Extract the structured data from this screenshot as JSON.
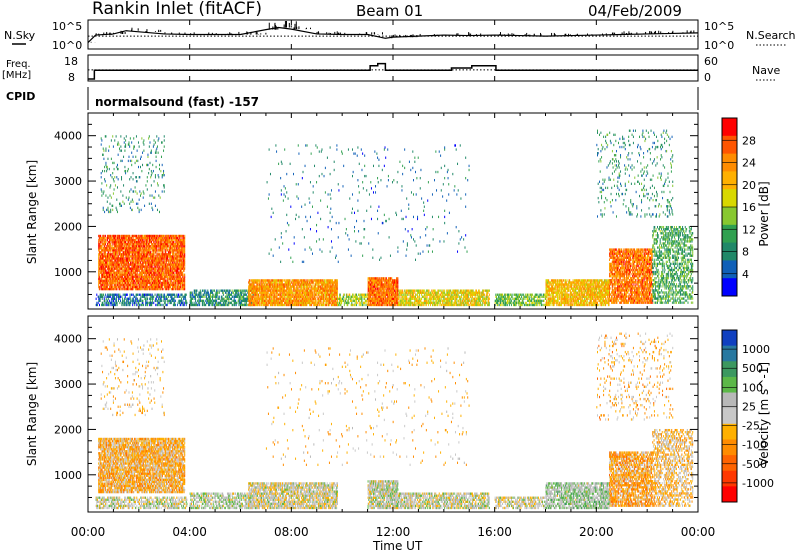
{
  "header": {
    "station": "Rankin Inlet (fitACF)",
    "beam": "Beam 01",
    "date": "04/Feb/2009"
  },
  "side_labels": {
    "nsky": "N.Sky",
    "nsearch": "N.Search",
    "freq": "Freq.",
    "freq_unit": "[MHz]",
    "nave": "Nave",
    "cpid": "CPID"
  },
  "cpid_text": "normalsound (fast) -157",
  "noise_axis": {
    "left_ticks": [
      "10^5",
      "10^0"
    ],
    "right_ticks": [
      "10^5",
      "10^0"
    ]
  },
  "freq_axis": {
    "left_ticks": [
      "18",
      "8"
    ],
    "right_ticks": [
      "60",
      "0"
    ]
  },
  "x_axis": {
    "label": "Time UT",
    "range_hours": [
      0,
      24
    ],
    "tick_hours": [
      0,
      4,
      8,
      12,
      16,
      20,
      24
    ],
    "tick_labels": [
      "00:00",
      "04:00",
      "08:00",
      "12:00",
      "16:00",
      "20:00",
      "00:00"
    ]
  },
  "y_axis": {
    "label": "Slant Range [km]",
    "range_km": [
      180,
      4500
    ],
    "tick_values": [
      1000,
      2000,
      3000,
      4000
    ],
    "tick_labels": [
      "1000",
      "2000",
      "3000",
      "4000"
    ]
  },
  "power_scale": {
    "title": "Power [dB]",
    "labels": [
      "28",
      "24",
      "20",
      "16",
      "12",
      "8",
      "4"
    ],
    "colors": [
      "#ff0000",
      "#ff5500",
      "#ff8c00",
      "#ffb000",
      "#d8d800",
      "#88c830",
      "#30a050",
      "#208868",
      "#1060b8",
      "#0000ff"
    ]
  },
  "velocity_scale": {
    "title": "Velocity [m s^-1]",
    "labels": [
      "1000",
      "500",
      "100",
      "25",
      "-25",
      "-100",
      "-500",
      "-1000"
    ],
    "colors": [
      "#1040c0",
      "#2878a0",
      "#3c9860",
      "#5cb848",
      "#b8b8b8",
      "#c8c8c8",
      "#ffb000",
      "#ff8c00",
      "#ff6400",
      "#ff3800",
      "#ff0000"
    ]
  },
  "chart_data": [
    {
      "type": "line",
      "title": "N.Sky / N.Search",
      "x_units": "hours UT",
      "description_y": "noise level (log scale, 10^0 to 10^5)",
      "series": [
        {
          "name": "N.Sky",
          "x": [
            0,
            0.3,
            1,
            1.5,
            2,
            3,
            4,
            6,
            7,
            7.5,
            8,
            9,
            10,
            11,
            11.7,
            12,
            13,
            14,
            15,
            16,
            17,
            18,
            19,
            20,
            21,
            22,
            23,
            24
          ],
          "values": [
            1,
            2.4,
            2.6,
            3.2,
            3.0,
            2.6,
            2.5,
            2.5,
            3.4,
            3.8,
            3.5,
            2.6,
            2.5,
            2.5,
            1.8,
            2.0,
            2.2,
            2.4,
            2.3,
            2.4,
            2.3,
            2.2,
            2.3,
            2.4,
            2.5,
            2.6,
            2.7,
            2.8
          ]
        },
        {
          "name": "N.Search",
          "x": [
            0,
            24
          ],
          "values": [
            2.2,
            2.2
          ]
        }
      ]
    },
    {
      "type": "line",
      "title": "Freq. / Nave",
      "x_units": "hours UT",
      "series": [
        {
          "name": "Freq. [MHz]",
          "x": [
            0,
            0.2,
            0.25,
            7.5,
            7.6,
            11,
            11.1,
            11.3,
            11.4,
            11.6,
            11.7,
            14.2,
            14.3,
            15,
            15.1,
            16,
            16.05,
            24
          ],
          "values": [
            8,
            8,
            12,
            12,
            12,
            12,
            14,
            14,
            15,
            15,
            12,
            12,
            13,
            13,
            14,
            14,
            12,
            12
          ]
        },
        {
          "name": "Nave",
          "x": [
            0,
            24
          ],
          "values": [
            25,
            25
          ]
        }
      ]
    },
    {
      "type": "heatmap",
      "title": "Power [dB]",
      "x_units": "hours UT",
      "y_units": "Slant Range [km]",
      "scale": [
        4,
        32
      ],
      "blobs": [
        {
          "t0": 0.4,
          "t1": 3.8,
          "r0": 600,
          "r1": 1800,
          "val": 27,
          "density": 0.85
        },
        {
          "t0": 0.3,
          "t1": 3.9,
          "r0": 250,
          "r1": 500,
          "val": 10,
          "density": 0.55
        },
        {
          "t0": 4.0,
          "t1": 6.5,
          "r0": 250,
          "r1": 600,
          "val": 12,
          "density": 0.6
        },
        {
          "t0": 6.3,
          "t1": 9.8,
          "r0": 250,
          "r1": 800,
          "val": 24,
          "density": 0.85
        },
        {
          "t0": 9.8,
          "t1": 11.0,
          "r0": 250,
          "r1": 500,
          "val": 18,
          "density": 0.55
        },
        {
          "t0": 11.0,
          "t1": 12.2,
          "r0": 250,
          "r1": 850,
          "val": 26,
          "density": 0.9
        },
        {
          "t0": 12.2,
          "t1": 15.8,
          "r0": 250,
          "r1": 600,
          "val": 20,
          "density": 0.75
        },
        {
          "t0": 16.0,
          "t1": 18.0,
          "r0": 250,
          "r1": 500,
          "val": 16,
          "density": 0.6
        },
        {
          "t0": 18.0,
          "t1": 20.5,
          "r0": 250,
          "r1": 800,
          "val": 22,
          "density": 0.8
        },
        {
          "t0": 20.5,
          "t1": 22.2,
          "r0": 300,
          "r1": 1500,
          "val": 26,
          "density": 0.75
        },
        {
          "t0": 22.2,
          "t1": 23.8,
          "r0": 300,
          "r1": 2000,
          "val": 14,
          "density": 0.45
        },
        {
          "t0": 0.5,
          "t1": 3.0,
          "r0": 2300,
          "r1": 4000,
          "val": 12,
          "density": 0.07
        },
        {
          "t0": 20.0,
          "t1": 23.0,
          "r0": 2200,
          "r1": 4100,
          "val": 12,
          "density": 0.08
        },
        {
          "t0": 7.0,
          "t1": 15.0,
          "r0": 1200,
          "r1": 3800,
          "val": 10,
          "density": 0.02
        }
      ]
    },
    {
      "type": "heatmap",
      "title": "Velocity [m s^-1]",
      "x_units": "hours UT",
      "y_units": "Slant Range [km]",
      "scale": [
        -1000,
        1000
      ],
      "blobs": [
        {
          "t0": 0.4,
          "t1": 3.8,
          "r0": 600,
          "r1": 1800,
          "val": -200,
          "density": 0.8
        },
        {
          "t0": 0.3,
          "t1": 3.9,
          "r0": 250,
          "r1": 500,
          "val": 100,
          "density": 0.55
        },
        {
          "t0": 4.0,
          "t1": 6.5,
          "r0": 250,
          "r1": 600,
          "val": 150,
          "density": 0.55
        },
        {
          "t0": 6.3,
          "t1": 9.8,
          "r0": 250,
          "r1": 800,
          "val": 50,
          "density": 0.7
        },
        {
          "t0": 11.0,
          "t1": 12.2,
          "r0": 250,
          "r1": 850,
          "val": 100,
          "density": 0.8
        },
        {
          "t0": 12.2,
          "t1": 15.8,
          "r0": 250,
          "r1": 600,
          "val": 80,
          "density": 0.65
        },
        {
          "t0": 16.0,
          "t1": 18.0,
          "r0": 250,
          "r1": 500,
          "val": 60,
          "density": 0.55
        },
        {
          "t0": 18.0,
          "t1": 20.5,
          "r0": 250,
          "r1": 800,
          "val": 200,
          "density": 0.7
        },
        {
          "t0": 20.5,
          "t1": 22.2,
          "r0": 300,
          "r1": 1500,
          "val": -250,
          "density": 0.7
        },
        {
          "t0": 22.2,
          "t1": 23.8,
          "r0": 300,
          "r1": 2000,
          "val": -150,
          "density": 0.45
        },
        {
          "t0": 0.5,
          "t1": 3.0,
          "r0": 2300,
          "r1": 4000,
          "val": -150,
          "density": 0.07
        },
        {
          "t0": 20.0,
          "t1": 23.0,
          "r0": 2200,
          "r1": 4100,
          "val": -200,
          "density": 0.08
        },
        {
          "t0": 7.0,
          "t1": 15.0,
          "r0": 1200,
          "r1": 3800,
          "val": -150,
          "density": 0.02
        }
      ]
    }
  ]
}
